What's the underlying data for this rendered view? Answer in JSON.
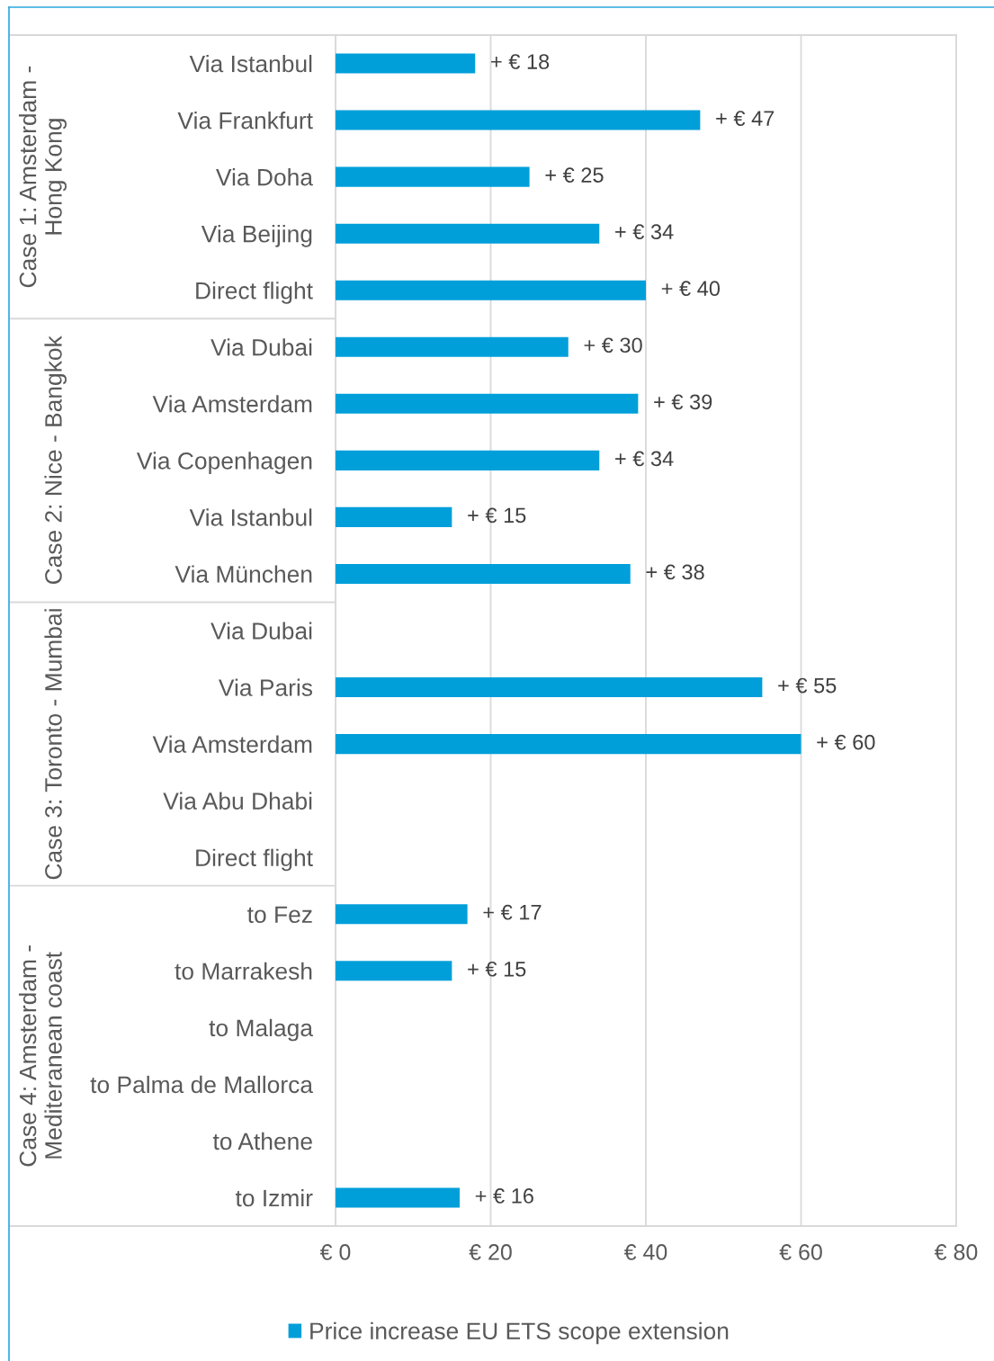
{
  "chart_data": {
    "type": "bar",
    "orientation": "horizontal",
    "categories": [
      "Via Istanbul",
      "Via Frankfurt",
      "Via Doha",
      "Via Beijing",
      "Direct flight",
      "Via Dubai",
      "Via Amsterdam",
      "Via Copenhagen",
      "Via Istanbul",
      "Via München",
      "Via Dubai",
      "Via Paris",
      "Via Amsterdam",
      "Via Abu Dhabi",
      "Direct flight",
      "to Fez",
      "to Marrakesh",
      "to Malaga",
      "to Palma de Mallorca",
      "to Athene",
      "to Izmir"
    ],
    "series": [
      {
        "name": "Price increase EU ETS scope extension",
        "color": "#009fda",
        "values": [
          18,
          47,
          25,
          34,
          40,
          30,
          39,
          34,
          15,
          38,
          null,
          55,
          60,
          null,
          null,
          17,
          15,
          null,
          null,
          null,
          16
        ],
        "value_labels": [
          "+ € 18",
          "+ € 47",
          "+ € 25",
          "+ € 34",
          "+ € 40",
          "+ € 30",
          "+ € 39",
          "+ € 34",
          "+ € 15",
          "+ € 38",
          null,
          "+ € 55",
          "+ € 60",
          null,
          null,
          "+ € 17",
          "+ € 15",
          null,
          null,
          null,
          "+ € 16"
        ]
      }
    ],
    "xlim": [
      0,
      80
    ],
    "xticks": [
      {
        "value": 0,
        "label": "€ 0"
      },
      {
        "value": 20,
        "label": "€ 20"
      },
      {
        "value": 40,
        "label": "€ 40"
      },
      {
        "value": 60,
        "label": "€ 60"
      },
      {
        "value": 80,
        "label": "€ 80"
      }
    ],
    "grid": "x",
    "legend": "bottom",
    "annotations": [
      "Case 1: Amsterdam - Hong Kong",
      "Case 2: Nice - Bangkok",
      "Case 3: Toronto - Mumbai",
      "Case 4: Amsterdam - Mediteranean coast"
    ]
  }
}
